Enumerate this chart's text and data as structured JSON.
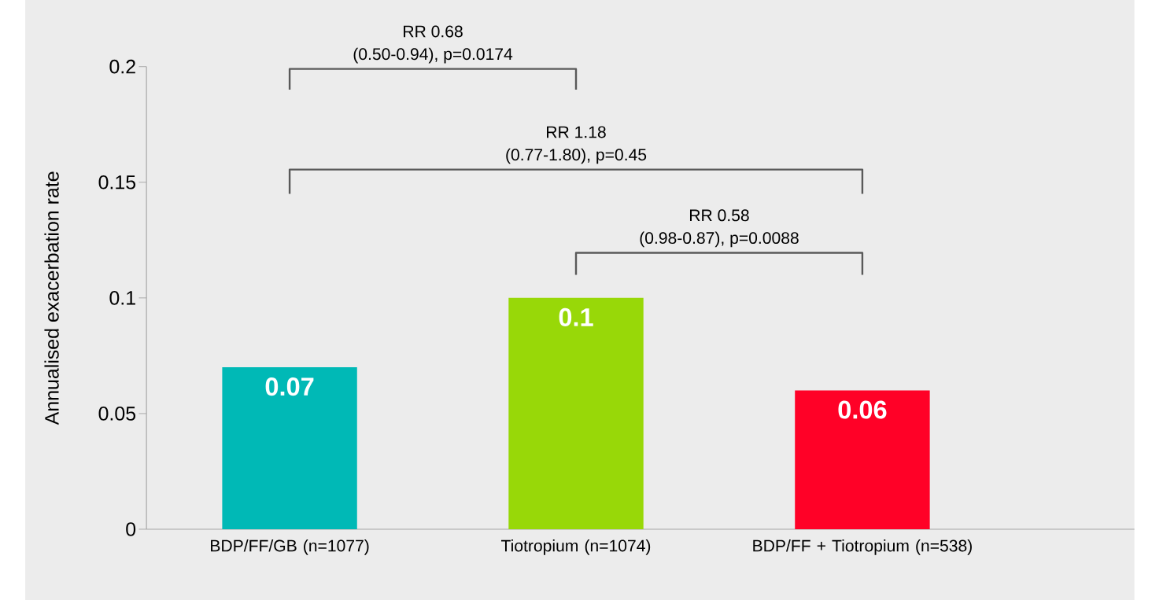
{
  "chart_data": {
    "type": "bar",
    "ylabel": "Annualised exacerbation rate",
    "categories": [
      "BDP/FF/GB (n=1077)",
      "Tiotropium (n=1074)",
      "BDP/FF + Tiotropium (n=538)"
    ],
    "values": [
      0.07,
      0.1,
      0.06
    ],
    "colors": [
      "#00b9b6",
      "#98d808",
      "#ff0127"
    ],
    "ylim": [
      0,
      0.2
    ],
    "yticks": [
      0,
      0.05,
      0.1,
      0.15,
      0.2
    ],
    "data_labels": true,
    "grid": false,
    "annotations": [
      "RR 0.68",
      "(0.50-0.94), p=0.0174",
      "RR 1.18",
      "(0.77-1.80), p=0.45",
      "RR 0.58",
      "(0.98-0.87), p=0.0088"
    ]
  }
}
